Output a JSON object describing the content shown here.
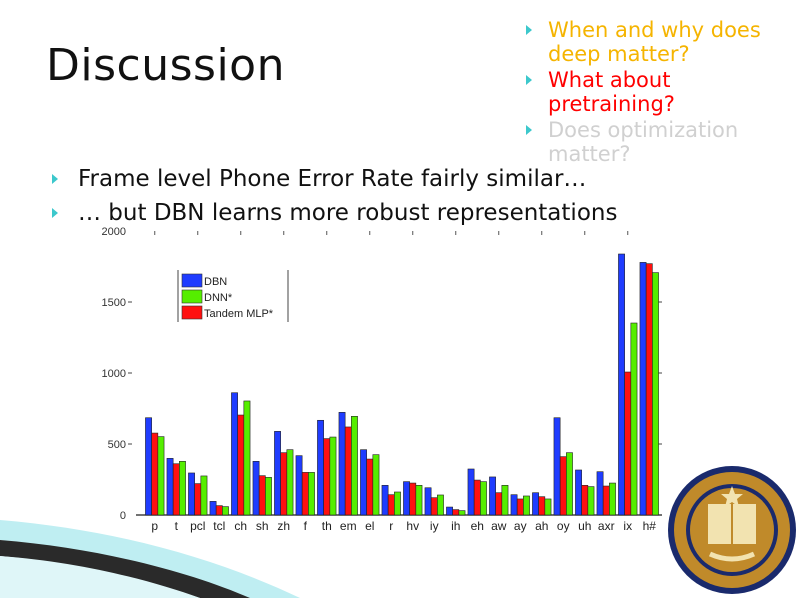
{
  "slide": {
    "title": "Discussion",
    "side_bullets": [
      {
        "text": "When and why does deep matter?",
        "color": "#f5b400"
      },
      {
        "text": "What about pretraining?",
        "color": "#ff0000"
      },
      {
        "text": "Does optimization matter?",
        "color": "#d0d0d0"
      }
    ],
    "main_bullets": [
      "Frame level Phone Error Rate fairly similar…",
      "… but DBN learns more robust representations"
    ],
    "bullet_color": "#3cc8cc",
    "logo_text": "THE UNIVERSITY OF CALIFORNIA BERKELEY 1868"
  },
  "chart_data": {
    "type": "bar",
    "categories": [
      "p",
      "t",
      "pcl",
      "tcl",
      "ch",
      "sh",
      "zh",
      "f",
      "th",
      "em",
      "el",
      "r",
      "hv",
      "iy",
      "ih",
      "eh",
      "aw",
      "ay",
      "ah",
      "oy",
      "uh",
      "axr",
      "ix",
      "h#"
    ],
    "ylim": [
      0,
      2000
    ],
    "yticks": [
      0,
      500,
      1000,
      1500,
      2000
    ],
    "legend_placement": "top-left",
    "series": [
      {
        "name": "DBN",
        "color": "#1f3cff",
        "values": [
          685,
          399,
          296,
          96,
          861,
          378,
          589,
          418,
          667,
          723,
          460,
          209,
          235,
          192,
          56,
          324,
          268,
          143,
          157,
          685,
          317,
          305,
          1838,
          1779
        ]
      },
      {
        "name": "Tandem MLP*",
        "color": "#ff1010",
        "values": [
          577,
          361,
          221,
          66,
          704,
          277,
          439,
          300,
          538,
          620,
          394,
          143,
          225,
          122,
          38,
          246,
          157,
          113,
          129,
          411,
          209,
          204,
          1007,
          1770
        ]
      },
      {
        "name": "DNN*",
        "color": "#55ee00",
        "values": [
          552,
          378,
          275,
          59,
          803,
          265,
          460,
          300,
          549,
          695,
          425,
          162,
          209,
          141,
          31,
          235,
          209,
          134,
          113,
          439,
          200,
          225,
          1352,
          1707
        ]
      }
    ],
    "legend_order": [
      "DBN",
      "DNN*",
      "Tandem MLP*"
    ]
  }
}
